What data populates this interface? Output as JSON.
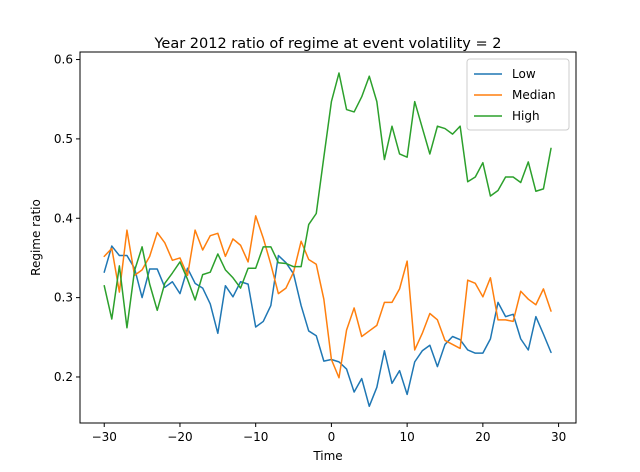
{
  "chart_data": {
    "type": "line",
    "title": "Year 2012 ratio of regime at event volatility = 2",
    "xlabel": "Time",
    "ylabel": "Regime ratio",
    "xlim": [
      -33.2,
      32.3
    ],
    "ylim": [
      0.142,
      0.6095
    ],
    "xticks": [
      -30,
      -20,
      -10,
      0,
      10,
      20,
      30
    ],
    "yticks": [
      0.2,
      0.3,
      0.4,
      0.5,
      0.6
    ],
    "xtick_labels": [
      "−30",
      "−20",
      "−10",
      "0",
      "10",
      "20",
      "30"
    ],
    "ytick_labels": [
      "0.2",
      "0.3",
      "0.4",
      "0.5",
      "0.6"
    ],
    "grid": false,
    "legend_position": "top-right",
    "x": [
      -30,
      -29,
      -28,
      -27,
      -26,
      -25,
      -24,
      -23,
      -22,
      -21,
      -20,
      -19,
      -18,
      -17,
      -16,
      -15,
      -14,
      -13,
      -12,
      -11,
      -10,
      -9,
      -8,
      -7,
      -6,
      -5,
      -4,
      -3,
      -2,
      -1,
      0,
      1,
      2,
      3,
      4,
      5,
      6,
      7,
      8,
      9,
      10,
      11,
      12,
      13,
      14,
      15,
      16,
      17,
      18,
      19,
      20,
      21,
      22,
      23,
      24,
      25,
      26,
      27,
      28,
      29
    ],
    "series": [
      {
        "name": "Low",
        "color": "#1f77b4",
        "values": [
          0.332,
          0.365,
          0.353,
          0.353,
          0.337,
          0.3,
          0.336,
          0.336,
          0.313,
          0.32,
          0.305,
          0.337,
          0.318,
          0.312,
          0.292,
          0.255,
          0.315,
          0.301,
          0.32,
          0.317,
          0.263,
          0.27,
          0.29,
          0.353,
          0.344,
          0.33,
          0.29,
          0.258,
          0.252,
          0.22,
          0.222,
          0.219,
          0.21,
          0.181,
          0.198,
          0.163,
          0.187,
          0.233,
          0.192,
          0.208,
          0.178,
          0.219,
          0.233,
          0.24,
          0.213,
          0.241,
          0.251,
          0.247,
          0.234,
          0.23,
          0.23,
          0.248,
          0.294,
          0.276,
          0.279,
          0.248,
          0.234,
          0.276,
          0.254,
          0.231
        ]
      },
      {
        "name": "Median",
        "color": "#ff7f0e",
        "values": [
          0.352,
          0.362,
          0.307,
          0.385,
          0.328,
          0.335,
          0.352,
          0.382,
          0.369,
          0.347,
          0.35,
          0.328,
          0.385,
          0.36,
          0.378,
          0.381,
          0.352,
          0.374,
          0.366,
          0.345,
          0.403,
          0.375,
          0.342,
          0.305,
          0.312,
          0.332,
          0.371,
          0.348,
          0.342,
          0.298,
          0.222,
          0.199,
          0.259,
          0.287,
          0.251,
          0.258,
          0.265,
          0.294,
          0.294,
          0.311,
          0.346,
          0.234,
          0.255,
          0.28,
          0.272,
          0.246,
          0.241,
          0.236,
          0.322,
          0.318,
          0.301,
          0.325,
          0.272,
          0.272,
          0.27,
          0.308,
          0.298,
          0.291,
          0.311,
          0.283
        ]
      },
      {
        "name": "High",
        "color": "#2ca02c",
        "values": [
          0.315,
          0.273,
          0.34,
          0.262,
          0.334,
          0.364,
          0.317,
          0.284,
          0.318,
          0.331,
          0.345,
          0.323,
          0.297,
          0.329,
          0.332,
          0.355,
          0.335,
          0.325,
          0.312,
          0.337,
          0.337,
          0.364,
          0.364,
          0.344,
          0.343,
          0.339,
          0.339,
          0.392,
          0.406,
          0.477,
          0.547,
          0.583,
          0.537,
          0.534,
          0.553,
          0.579,
          0.547,
          0.474,
          0.516,
          0.481,
          0.477,
          0.547,
          0.514,
          0.481,
          0.516,
          0.513,
          0.506,
          0.516,
          0.446,
          0.452,
          0.47,
          0.428,
          0.435,
          0.452,
          0.452,
          0.445,
          0.471,
          0.434,
          0.437,
          0.488
        ]
      }
    ]
  }
}
